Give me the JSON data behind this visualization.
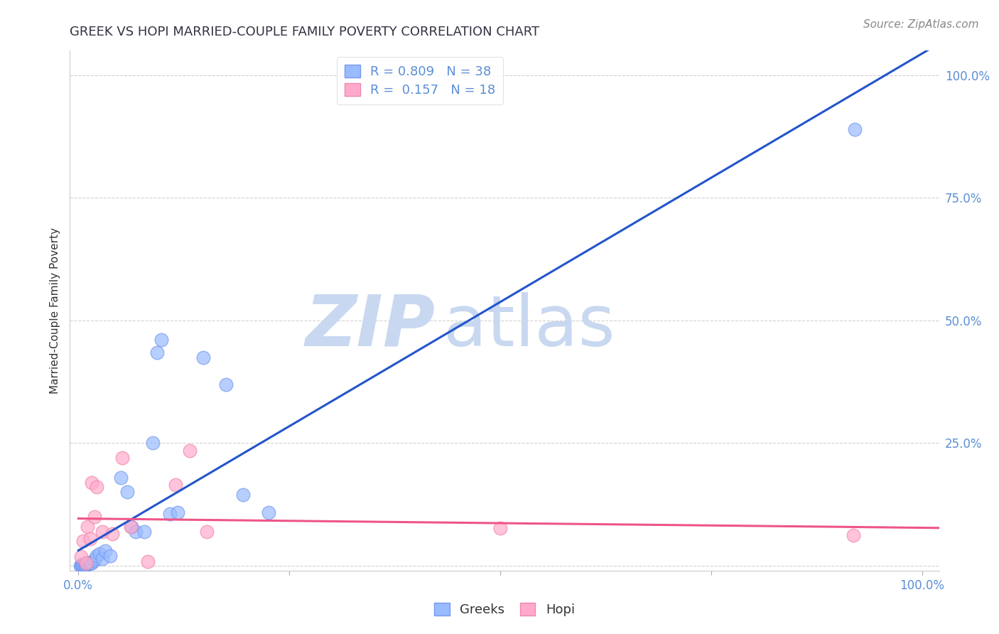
{
  "title": "GREEK VS HOPI MARRIED-COUPLE FAMILY POVERTY CORRELATION CHART",
  "source": "Source: ZipAtlas.com",
  "ylabel": "Married-Couple Family Poverty",
  "xlim": [
    -0.01,
    1.02
  ],
  "ylim": [
    -0.01,
    1.05
  ],
  "tick_color": "#5B8ED6",
  "greek_color": "#99BBFF",
  "hopi_color": "#FFAACC",
  "greek_edge_color": "#7799EE",
  "hopi_edge_color": "#EE88AA",
  "greek_line_color": "#2255CC",
  "hopi_line_color": "#EE5588",
  "label_color": "#5577BB",
  "R_greek": "0.809",
  "N_greek": "38",
  "R_hopi": "0.157",
  "N_hopi": "18",
  "watermark_color": "#C8D8F0",
  "title_color": "#333344",
  "source_color": "#888888",
  "greek_scatter_x": [
    0.002,
    0.003,
    0.004,
    0.005,
    0.006,
    0.007,
    0.007,
    0.008,
    0.009,
    0.01,
    0.011,
    0.012,
    0.013,
    0.014,
    0.015,
    0.016,
    0.018,
    0.02,
    0.022,
    0.025,
    0.028,
    0.032,
    0.038,
    0.05,
    0.058,
    0.063,
    0.068,
    0.078,
    0.088,
    0.093,
    0.098,
    0.108,
    0.118,
    0.148,
    0.175,
    0.195,
    0.225,
    0.92
  ],
  "greek_scatter_y": [
    0.0,
    0.001,
    0.0,
    0.001,
    0.002,
    0.002,
    0.001,
    0.003,
    0.002,
    0.004,
    0.003,
    0.005,
    0.004,
    0.006,
    0.007,
    0.005,
    0.01,
    0.015,
    0.02,
    0.025,
    0.015,
    0.03,
    0.02,
    0.18,
    0.15,
    0.08,
    0.07,
    0.07,
    0.25,
    0.435,
    0.46,
    0.105,
    0.108,
    0.425,
    0.37,
    0.145,
    0.108,
    0.89
  ],
  "hopi_scatter_x": [
    0.003,
    0.006,
    0.009,
    0.011,
    0.014,
    0.016,
    0.019,
    0.022,
    0.028,
    0.04,
    0.052,
    0.062,
    0.082,
    0.115,
    0.132,
    0.152,
    0.5,
    0.918
  ],
  "hopi_scatter_y": [
    0.018,
    0.05,
    0.005,
    0.08,
    0.055,
    0.17,
    0.1,
    0.16,
    0.07,
    0.065,
    0.22,
    0.08,
    0.008,
    0.165,
    0.235,
    0.07,
    0.077,
    0.062
  ],
  "greek_line_x0": 0.0,
  "greek_line_x1": 1.02,
  "hopi_line_x0": 0.0,
  "hopi_line_x1": 1.02
}
